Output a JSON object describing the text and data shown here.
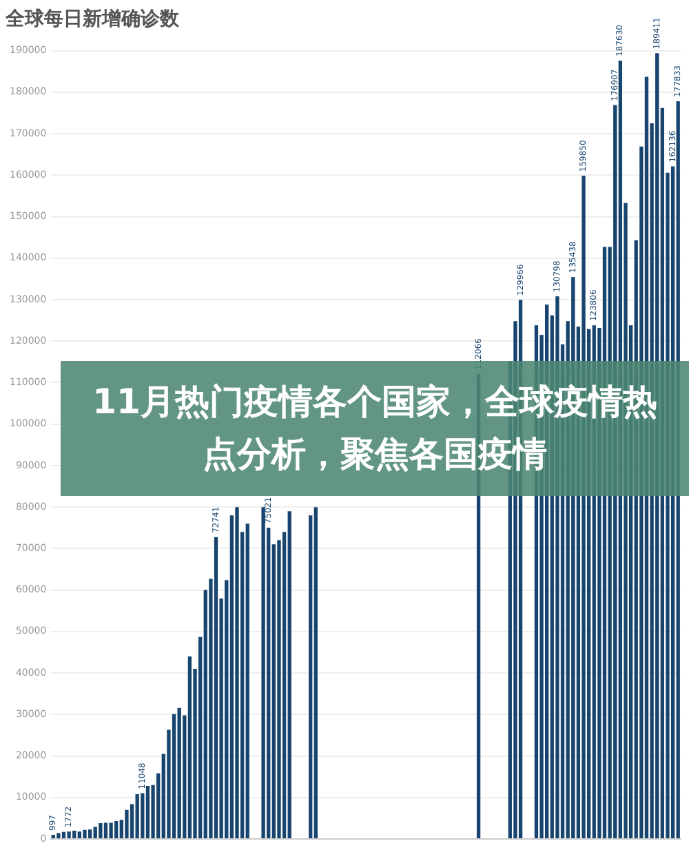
{
  "chart_data": {
    "type": "bar",
    "title": "全球每日新增确诊数",
    "annotations": [
      "11月热门疫情各个国家，全球疫情热点分析，聚焦各国疫情"
    ],
    "categories": [
      null,
      null,
      null,
      null,
      null,
      null,
      null,
      null,
      null,
      null,
      null,
      null,
      null,
      null,
      null,
      null,
      null,
      null,
      null,
      null,
      null,
      null,
      null,
      null,
      null,
      null,
      null,
      null,
      null,
      null,
      null,
      null,
      null,
      null,
      null,
      null,
      null,
      null,
      null,
      null,
      null,
      null,
      null,
      null,
      null,
      null,
      null,
      null,
      null,
      null,
      null,
      null,
      null,
      null,
      null,
      null,
      null,
      null,
      null,
      null,
      null,
      null,
      null,
      null,
      null,
      null,
      null,
      null,
      null,
      null,
      null,
      null,
      null,
      null,
      null,
      null,
      null,
      null,
      null,
      null,
      null,
      null,
      null,
      null,
      null,
      null,
      null,
      null,
      null,
      null,
      null,
      null,
      null,
      null,
      null,
      null,
      null,
      null,
      null,
      null,
      null,
      null,
      null,
      null,
      null,
      null,
      null,
      null,
      null,
      null,
      null,
      null,
      null,
      null,
      null,
      null,
      null,
      null,
      null,
      null
    ],
    "values": [
      997,
      1400,
      1700,
      1772,
      2000,
      1800,
      2200,
      2300,
      2900,
      3800,
      3900,
      3900,
      4300,
      4600,
      7000,
      8400,
      10800,
      11048,
      12800,
      13000,
      15800,
      20500,
      26300,
      30100,
      31600,
      29800,
      44000,
      41000,
      48700,
      60000,
      62700,
      72741,
      58000,
      62400,
      78000,
      80000,
      74000,
      76000,
      null,
      null,
      80000,
      75021,
      71000,
      72000,
      74000,
      79000,
      null,
      null,
      null,
      78000,
      80000,
      null,
      null,
      null,
      null,
      null,
      null,
      null,
      null,
      null,
      null,
      null,
      null,
      null,
      null,
      null,
      null,
      null,
      null,
      null,
      null,
      null,
      null,
      null,
      null,
      null,
      null,
      null,
      null,
      null,
      null,
      112066,
      null,
      null,
      null,
      null,
      null,
      115200,
      124800,
      129966,
      null,
      null,
      123800,
      121500,
      128800,
      126200,
      130798,
      119200,
      124800,
      135438,
      123500,
      159850,
      122900,
      123806,
      123200,
      142700,
      142700,
      176907,
      187630,
      153300,
      123800,
      144300,
      166900,
      183700,
      172500,
      189411,
      176200,
      160600,
      162136,
      177833
    ],
    "value_labels": [
      "997",
      null,
      null,
      "1772",
      null,
      null,
      null,
      null,
      null,
      null,
      null,
      null,
      null,
      null,
      null,
      null,
      null,
      "11048",
      null,
      null,
      null,
      null,
      null,
      null,
      null,
      null,
      null,
      null,
      null,
      null,
      null,
      "72741",
      null,
      null,
      null,
      null,
      null,
      null,
      null,
      null,
      null,
      "75021",
      null,
      null,
      null,
      null,
      null,
      null,
      null,
      null,
      null,
      null,
      null,
      null,
      null,
      null,
      null,
      null,
      null,
      null,
      null,
      null,
      null,
      null,
      null,
      null,
      null,
      null,
      null,
      null,
      null,
      null,
      null,
      null,
      null,
      null,
      null,
      null,
      null,
      null,
      null,
      "112066",
      null,
      null,
      null,
      null,
      null,
      null,
      null,
      "129966",
      null,
      null,
      null,
      null,
      null,
      null,
      "130798",
      null,
      null,
      "135438",
      null,
      "159850",
      null,
      "123806",
      null,
      null,
      null,
      "176907",
      "187630",
      null,
      null,
      null,
      null,
      null,
      null,
      "189411",
      null,
      null,
      "162136",
      "177833"
    ],
    "color": "#17456f",
    "ylim": [
      0,
      190000
    ],
    "yticks": [
      0,
      10000,
      20000,
      30000,
      40000,
      50000,
      60000,
      70000,
      80000,
      90000,
      100000,
      110000,
      120000,
      130000,
      140000,
      150000,
      160000,
      170000,
      180000,
      190000
    ],
    "grid": "y",
    "tick_labels": "y"
  }
}
